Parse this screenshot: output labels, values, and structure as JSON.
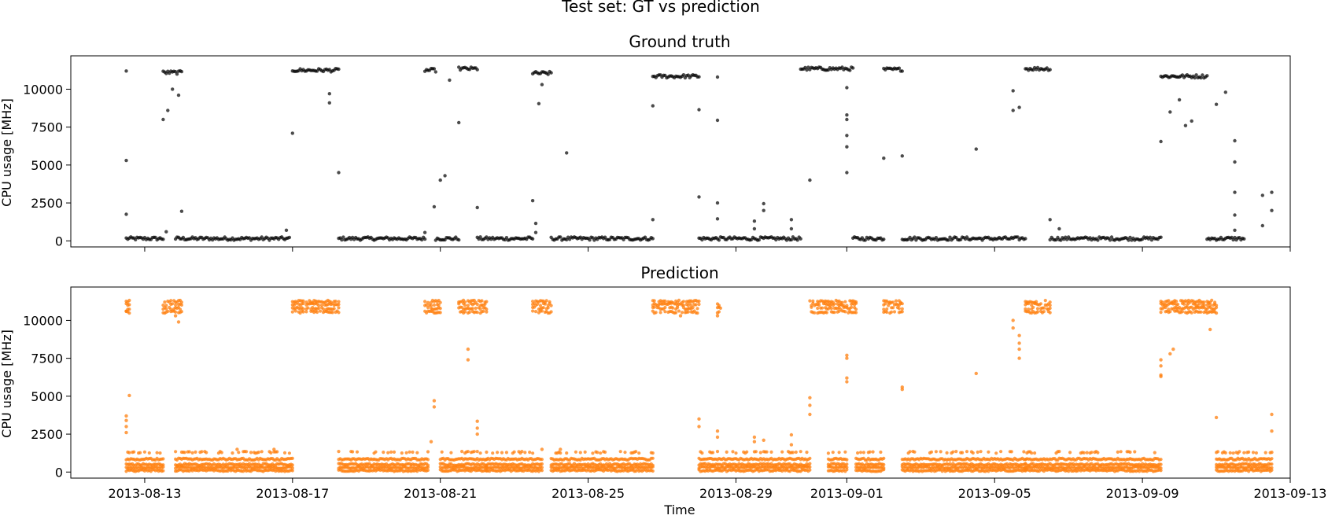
{
  "figure": {
    "suptitle": "Test set: GT vs prediction",
    "xlabel": "Time"
  },
  "chart_data": [
    {
      "type": "scatter",
      "title": "Ground truth",
      "xlabel": "",
      "ylabel": "CPU usage [MHz]",
      "series_color": "#000000",
      "xlim": [
        "2013-08-11",
        "2013-09-13"
      ],
      "ylim": [
        -400,
        12200
      ],
      "xticks": [
        "2013-08-13",
        "2013-08-17",
        "2013-08-21",
        "2013-08-25",
        "2013-08-29",
        "2013-09-01",
        "2013-09-05",
        "2013-09-09",
        "2013-09-13"
      ],
      "yticks": [
        0,
        2500,
        5000,
        7500,
        10000
      ],
      "segments": [
        {
          "x0": "2013-08-12 12:00",
          "x1": "2013-08-13 12:00",
          "y": 150,
          "note": ""
        },
        {
          "x0": "2013-08-13 20:00",
          "x1": "2013-08-16 22:00",
          "y": 150
        },
        {
          "x0": "2013-08-18 06:00",
          "x1": "2013-08-20 14:00",
          "y": 150
        },
        {
          "x0": "2013-08-20 21:00",
          "x1": "2013-08-21 12:00",
          "y": 150
        },
        {
          "x0": "2013-08-22 00:00",
          "x1": "2013-08-23 12:00",
          "y": 150
        },
        {
          "x0": "2013-08-24 00:00",
          "x1": "2013-08-26 18:00",
          "y": 150
        },
        {
          "x0": "2013-08-28 00:00",
          "x1": "2013-08-30 18:00",
          "y": 150
        },
        {
          "x0": "2013-09-01 04:00",
          "x1": "2013-09-02 00:00",
          "y": 150
        },
        {
          "x0": "2013-09-02 12:00",
          "x1": "2013-09-05 20:00",
          "y": 150
        },
        {
          "x0": "2013-09-06 12:00",
          "x1": "2013-09-09 12:00",
          "y": 150
        },
        {
          "x0": "2013-09-10 18:00",
          "x1": "2013-09-11 18:00",
          "y": 150
        },
        {
          "x0": "2013-08-13 12:00",
          "x1": "2013-08-14 00:00",
          "y": 11100
        },
        {
          "x0": "2013-08-17 00:00",
          "x1": "2013-08-18 06:00",
          "y": 11250
        },
        {
          "x0": "2013-08-20 14:00",
          "x1": "2013-08-20 21:00",
          "y": 11250
        },
        {
          "x0": "2013-08-21 12:00",
          "x1": "2013-08-22 00:00",
          "y": 11350
        },
        {
          "x0": "2013-08-23 12:00",
          "x1": "2013-08-24 00:00",
          "y": 11050
        },
        {
          "x0": "2013-08-26 18:00",
          "x1": "2013-08-28 00:00",
          "y": 10850
        },
        {
          "x0": "2013-08-30 18:00",
          "x1": "2013-09-01 04:00",
          "y": 11350
        },
        {
          "x0": "2013-09-02 00:00",
          "x1": "2013-09-02 12:00",
          "y": 11300
        },
        {
          "x0": "2013-09-05 20:00",
          "x1": "2013-09-06 12:00",
          "y": 11350
        },
        {
          "x0": "2013-09-09 12:00",
          "x1": "2013-09-10 18:00",
          "y": 10850
        }
      ],
      "points": [
        [
          "2013-08-12 12:00",
          11200
        ],
        [
          "2013-08-12 12:00",
          5300
        ],
        [
          "2013-08-12 12:00",
          1750
        ],
        [
          "2013-08-13 12:00",
          8000
        ],
        [
          "2013-08-13 15:00",
          8600
        ],
        [
          "2013-08-13 18:00",
          10000
        ],
        [
          "2013-08-13 22:00",
          9600
        ],
        [
          "2013-08-14 00:00",
          1950
        ],
        [
          "2013-08-13 14:00",
          600
        ],
        [
          "2013-08-16 20:00",
          700
        ],
        [
          "2013-08-17 00:00",
          7100
        ],
        [
          "2013-08-18 00:00",
          9700
        ],
        [
          "2013-08-18 00:00",
          9100
        ],
        [
          "2013-08-18 06:00",
          4500
        ],
        [
          "2013-08-20 14:00",
          550
        ],
        [
          "2013-08-20 20:00",
          2250
        ],
        [
          "2013-08-21 00:00",
          4000
        ],
        [
          "2013-08-21 03:00",
          4300
        ],
        [
          "2013-08-21 06:00",
          10600
        ],
        [
          "2013-08-21 12:00",
          7800
        ],
        [
          "2013-08-22 00:00",
          2200
        ],
        [
          "2013-08-23 12:00",
          2650
        ],
        [
          "2013-08-23 14:00",
          1150
        ],
        [
          "2013-08-23 14:00",
          550
        ],
        [
          "2013-08-23 16:00",
          9050
        ],
        [
          "2013-08-23 18:00",
          10300
        ],
        [
          "2013-08-24 10:00",
          5800
        ],
        [
          "2013-08-26 18:00",
          1400
        ],
        [
          "2013-08-26 18:00",
          8900
        ],
        [
          "2013-08-28 00:00",
          8650
        ],
        [
          "2013-08-28 00:00",
          2900
        ],
        [
          "2013-08-28 12:00",
          10800
        ],
        [
          "2013-08-28 12:00",
          7950
        ],
        [
          "2013-08-28 12:00",
          2500
        ],
        [
          "2013-08-28 12:00",
          1450
        ],
        [
          "2013-08-29 12:00",
          1300
        ],
        [
          "2013-08-29 12:00",
          800
        ],
        [
          "2013-08-29 18:00",
          2450
        ],
        [
          "2013-08-29 18:00",
          2000
        ],
        [
          "2013-08-30 12:00",
          1400
        ],
        [
          "2013-08-30 12:00",
          800
        ],
        [
          "2013-08-31 00:00",
          4000
        ],
        [
          "2013-09-01 00:00",
          10100
        ],
        [
          "2013-09-01 00:00",
          8300
        ],
        [
          "2013-09-01 00:00",
          8000
        ],
        [
          "2013-09-01 00:00",
          6950
        ],
        [
          "2013-09-01 00:00",
          6200
        ],
        [
          "2013-09-01 00:00",
          4500
        ],
        [
          "2013-09-02 00:00",
          5450
        ],
        [
          "2013-09-02 12:00",
          5600
        ],
        [
          "2013-09-04 12:00",
          6050
        ],
        [
          "2013-09-05 12:00",
          9900
        ],
        [
          "2013-09-05 12:00",
          8600
        ],
        [
          "2013-09-05 16:00",
          8800
        ],
        [
          "2013-09-06 12:00",
          1400
        ],
        [
          "2013-09-06 18:00",
          800
        ],
        [
          "2013-09-09 12:00",
          6550
        ],
        [
          "2013-09-09 18:00",
          8500
        ],
        [
          "2013-09-10 00:00",
          9300
        ],
        [
          "2013-09-10 04:00",
          7600
        ],
        [
          "2013-09-10 08:00",
          7900
        ],
        [
          "2013-09-11 00:00",
          9000
        ],
        [
          "2013-09-11 06:00",
          9800
        ],
        [
          "2013-09-11 12:00",
          6600
        ],
        [
          "2013-09-11 12:00",
          5200
        ],
        [
          "2013-09-11 12:00",
          3200
        ],
        [
          "2013-09-11 12:00",
          1700
        ],
        [
          "2013-09-11 12:00",
          700
        ],
        [
          "2013-09-12 06:00",
          3000
        ],
        [
          "2013-09-12 06:00",
          1000
        ],
        [
          "2013-09-12 12:00",
          3200
        ],
        [
          "2013-09-12 12:00",
          2000
        ]
      ]
    },
    {
      "type": "scatter",
      "title": "Prediction",
      "xlabel": "Time",
      "ylabel": "CPU usage [MHz]",
      "series_color": "#ff7f0e",
      "xlim": [
        "2013-08-11",
        "2013-09-13"
      ],
      "ylim": [
        -400,
        12200
      ],
      "xticks": [
        "2013-08-13",
        "2013-08-17",
        "2013-08-21",
        "2013-08-25",
        "2013-08-29",
        "2013-09-01",
        "2013-09-05",
        "2013-09-09",
        "2013-09-13"
      ],
      "yticks": [
        0,
        2500,
        5000,
        7500,
        10000
      ],
      "band_levels_low": [
        100,
        300,
        500,
        850,
        1300
      ],
      "band_levels_high": [
        10550,
        10800,
        11050,
        11250
      ],
      "low_segments": [
        {
          "x0": "2013-08-12 12:00",
          "x1": "2013-08-13 12:00"
        },
        {
          "x0": "2013-08-13 20:00",
          "x1": "2013-08-17 00:00"
        },
        {
          "x0": "2013-08-18 06:00",
          "x1": "2013-08-20 16:00"
        },
        {
          "x0": "2013-08-21 00:00",
          "x1": "2013-08-22 06:00"
        },
        {
          "x0": "2013-08-22 06:00",
          "x1": "2013-08-23 18:00"
        },
        {
          "x0": "2013-08-24 00:00",
          "x1": "2013-08-26 18:00"
        },
        {
          "x0": "2013-08-28 00:00",
          "x1": "2013-08-31 00:00"
        },
        {
          "x0": "2013-08-31 12:00",
          "x1": "2013-09-01 00:00"
        },
        {
          "x0": "2013-09-01 06:00",
          "x1": "2013-09-02 00:00"
        },
        {
          "x0": "2013-09-02 12:00",
          "x1": "2013-09-05 20:00"
        },
        {
          "x0": "2013-09-05 20:00",
          "x1": "2013-09-09 12:00"
        },
        {
          "x0": "2013-09-11 00:00",
          "x1": "2013-09-12 12:00"
        }
      ],
      "high_segments": [
        {
          "x0": "2013-08-12 12:00",
          "x1": "2013-08-12 14:00"
        },
        {
          "x0": "2013-08-13 12:00",
          "x1": "2013-08-14 00:00"
        },
        {
          "x0": "2013-08-17 00:00",
          "x1": "2013-08-18 06:00"
        },
        {
          "x0": "2013-08-20 14:00",
          "x1": "2013-08-21 00:00"
        },
        {
          "x0": "2013-08-21 12:00",
          "x1": "2013-08-22 06:00"
        },
        {
          "x0": "2013-08-23 12:00",
          "x1": "2013-08-24 00:00"
        },
        {
          "x0": "2013-08-26 18:00",
          "x1": "2013-08-28 00:00"
        },
        {
          "x0": "2013-08-28 12:00",
          "x1": "2013-08-28 14:00"
        },
        {
          "x0": "2013-08-31 00:00",
          "x1": "2013-09-01 06:00"
        },
        {
          "x0": "2013-09-02 00:00",
          "x1": "2013-09-02 12:00"
        },
        {
          "x0": "2013-09-05 20:00",
          "x1": "2013-09-06 12:00"
        },
        {
          "x0": "2013-09-09 12:00",
          "x1": "2013-09-11 00:00"
        }
      ],
      "points": [
        [
          "2013-08-12 12:00",
          3700
        ],
        [
          "2013-08-12 12:00",
          3400
        ],
        [
          "2013-08-12 12:00",
          3000
        ],
        [
          "2013-08-12 12:00",
          2600
        ],
        [
          "2013-08-12 14:00",
          5050
        ],
        [
          "2013-08-12 12:00",
          10600
        ],
        [
          "2013-08-13 22:00",
          9900
        ],
        [
          "2013-08-13 20:00",
          10300
        ],
        [
          "2013-08-15 12:00",
          1500
        ],
        [
          "2013-08-16 12:00",
          1500
        ],
        [
          "2013-08-20 18:00",
          2000
        ],
        [
          "2013-08-20 20:00",
          4700
        ],
        [
          "2013-08-20 20:00",
          4300
        ],
        [
          "2013-08-21 18:00",
          8100
        ],
        [
          "2013-08-21 18:00",
          7400
        ],
        [
          "2013-08-22 00:00",
          3350
        ],
        [
          "2013-08-22 00:00",
          2900
        ],
        [
          "2013-08-22 00:00",
          2500
        ],
        [
          "2013-08-23 18:00",
          1500
        ],
        [
          "2013-08-24 06:00",
          1500
        ],
        [
          "2013-08-27 12:00",
          10300
        ],
        [
          "2013-08-28 00:00",
          3500
        ],
        [
          "2013-08-28 00:00",
          3000
        ],
        [
          "2013-08-28 12:00",
          2700
        ],
        [
          "2013-08-28 12:00",
          2300
        ],
        [
          "2013-08-28 12:00",
          10500
        ],
        [
          "2013-08-28 12:00",
          10300
        ],
        [
          "2013-08-29 12:00",
          2300
        ],
        [
          "2013-08-29 12:00",
          2000
        ],
        [
          "2013-08-29 18:00",
          2100
        ],
        [
          "2013-08-30 12:00",
          2450
        ],
        [
          "2013-08-30 12:00",
          1800
        ],
        [
          "2013-08-31 00:00",
          4900
        ],
        [
          "2013-08-31 00:00",
          4400
        ],
        [
          "2013-08-31 00:00",
          3800
        ],
        [
          "2013-09-01 00:00",
          7700
        ],
        [
          "2013-09-01 00:00",
          7500
        ],
        [
          "2013-09-01 00:00",
          6200
        ],
        [
          "2013-09-01 00:00",
          5950
        ],
        [
          "2013-09-02 12:00",
          5600
        ],
        [
          "2013-09-02 12:00",
          5450
        ],
        [
          "2013-09-04 12:00",
          6500
        ],
        [
          "2013-09-05 12:00",
          10000
        ],
        [
          "2013-09-05 12:00",
          9500
        ],
        [
          "2013-09-05 16:00",
          9000
        ],
        [
          "2013-09-05 16:00",
          8500
        ],
        [
          "2013-09-05 16:00",
          8100
        ],
        [
          "2013-09-05 16:00",
          7500
        ],
        [
          "2013-09-09 12:00",
          7400
        ],
        [
          "2013-09-09 12:00",
          7000
        ],
        [
          "2013-09-09 12:00",
          6400
        ],
        [
          "2013-09-09 12:00",
          6300
        ],
        [
          "2013-09-09 18:00",
          7800
        ],
        [
          "2013-09-09 20:00",
          8100
        ],
        [
          "2013-09-10 20:00",
          9400
        ],
        [
          "2013-09-11 00:00",
          3600
        ],
        [
          "2013-09-12 12:00",
          3800
        ],
        [
          "2013-09-12 12:00",
          2700
        ],
        [
          "2013-09-12 12:00",
          1300
        ]
      ]
    }
  ]
}
